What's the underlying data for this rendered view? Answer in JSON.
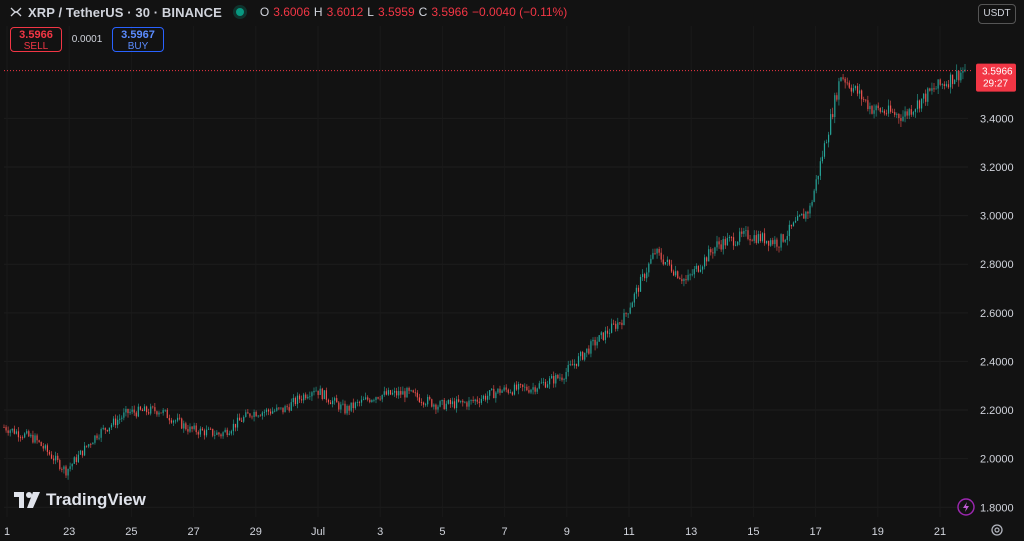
{
  "header": {
    "title": "XRP / TetherUS · 30 · BINANCE",
    "ohlc": [
      {
        "k": "O",
        "v": "3.6006"
      },
      {
        "k": "H",
        "v": "3.6012"
      },
      {
        "k": "L",
        "v": "3.5959"
      },
      {
        "k": "C",
        "v": "3.5966"
      },
      {
        "k": "",
        "v": "−0.0040 (−0.11%)"
      }
    ]
  },
  "trade": {
    "sell_price": "3.5966",
    "sell_label": "SELL",
    "spread": "0.0001",
    "buy_price": "3.5967",
    "buy_label": "BUY"
  },
  "currency": "USDT",
  "logo_text": "TradingView",
  "colors": {
    "up": "#26a69a",
    "down": "#ef5350",
    "last_price": "#f23645",
    "background": "#121212"
  },
  "last_price": {
    "value": 3.5966,
    "label": "3.5966",
    "countdown": "29:27"
  },
  "chart_data": {
    "type": "line",
    "title": "",
    "x_tick_labels": [
      "1",
      "23",
      "25",
      "27",
      "29",
      "Jul",
      "3",
      "5",
      "7",
      "9",
      "11",
      "13",
      "15",
      "17",
      "19",
      "21"
    ],
    "y_tick_labels": [
      "1.8000",
      "2.0000",
      "2.2000",
      "2.4000",
      "2.6000",
      "2.8000",
      "3.0000",
      "3.2000",
      "3.4000"
    ],
    "ylim": [
      1.76,
      3.78
    ],
    "xlabel": "",
    "ylabel": "",
    "series": [
      {
        "x": [
          "Jun 21",
          "Jun 22",
          "Jun 23",
          "Jun 24",
          "Jun 25",
          "Jun 26",
          "Jun 27",
          "Jun 28",
          "Jun 29",
          "Jun 30",
          "Jul 1",
          "Jul 2",
          "Jul 3",
          "Jul 4",
          "Jul 5",
          "Jul 6",
          "Jul 7",
          "Jul 8",
          "Jul 9",
          "Jul 10",
          "Jul 11",
          "Jul 12",
          "Jul 13",
          "Jul 14",
          "Jul 15",
          "Jul 16",
          "Jul 17",
          "Jul 18",
          "Jul 19",
          "Jul 20",
          "Jul 21",
          "Jul 22"
        ],
        "values": [
          2.13,
          2.08,
          1.95,
          2.1,
          2.19,
          2.2,
          2.12,
          2.1,
          2.19,
          2.2,
          2.29,
          2.2,
          2.26,
          2.27,
          2.22,
          2.23,
          2.28,
          2.29,
          2.34,
          2.47,
          2.58,
          2.85,
          2.73,
          2.88,
          2.92,
          2.89,
          3.03,
          3.58,
          3.44,
          3.41,
          3.52,
          3.6
        ]
      }
    ]
  }
}
